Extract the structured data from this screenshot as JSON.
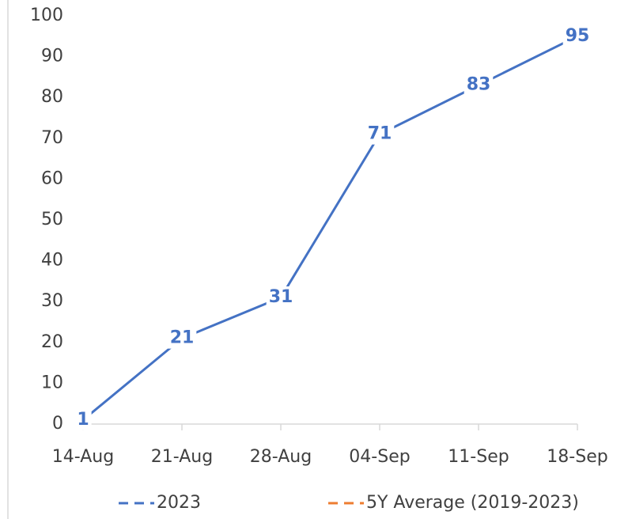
{
  "chart_data": {
    "type": "line",
    "categories": [
      "14-Aug",
      "21-Aug",
      "28-Aug",
      "04-Sep",
      "11-Sep",
      "18-Sep"
    ],
    "series": [
      {
        "name": "2023",
        "color": "#4472c4",
        "values": [
          1,
          21,
          31,
          71,
          83,
          95
        ]
      },
      {
        "name": "5Y Average (2019-2023)",
        "color": "#ed7d31",
        "values": [
          null,
          null,
          null,
          null,
          null,
          null
        ]
      }
    ],
    "ylim": [
      0,
      100
    ],
    "yticks": [
      0,
      10,
      20,
      30,
      40,
      50,
      60,
      70,
      80,
      90,
      100
    ],
    "grid": false,
    "legend": "bottom",
    "data_labels": true
  }
}
